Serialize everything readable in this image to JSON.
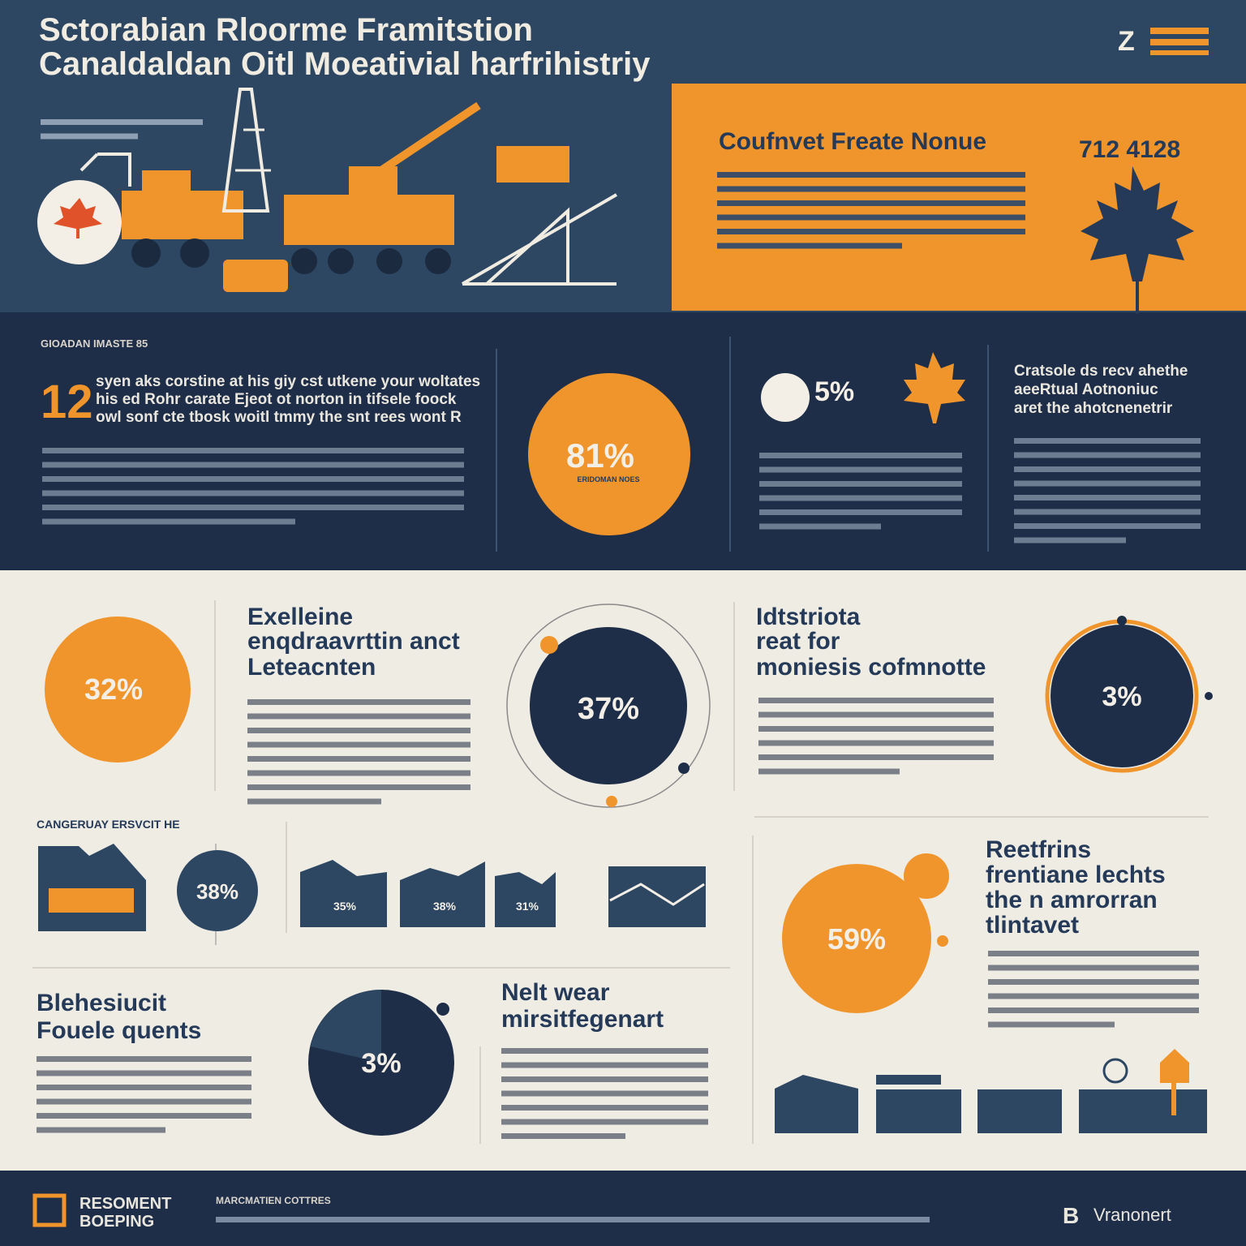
{
  "header": {
    "title": [
      "Sctorabian Rloorme Framitstion",
      "Canaldaldan Oitl Moeativial harfrihistriy"
    ],
    "logo": "Z"
  },
  "hero": {
    "heading": "Coufnvet Freate Nonue",
    "number": "712 4128"
  },
  "impact": {
    "label": "GIOADAN IMASTE 85",
    "big_number": "12",
    "lead": [
      "syen aks corstine at his giy cst utkene your woltates",
      "his ed Rohr carate Ejeot ot norton in tifsele foock",
      "owl sonf cte tbosk woitl tmmy the snt rees wont R"
    ],
    "circle_value": "81%",
    "circle_caption": "ERIDOMAN NOES",
    "badge_value": "5%",
    "side_heading": [
      "Cratsole ds recv ahethe",
      "aeeRtual Aotnoniuc",
      "aret the ahotcnenetrir"
    ]
  },
  "stats": {
    "left_value": "32%",
    "left_heading": [
      "Exelleine",
      "enqdraavrttin anct",
      "Leteacnten"
    ],
    "center_value": "37%",
    "right_heading": [
      "Idtstriota",
      "reat for",
      "moniesis cofmnotte"
    ],
    "right_value": "3%"
  },
  "economy": {
    "label": "CANGERUAY ERSVCIT HE",
    "circle_value": "38%",
    "bar_labels": [
      "35%",
      "38%",
      "31%"
    ],
    "right_heading": [
      "Reetfrins",
      "frentiane lechts",
      "the n amrorran",
      "tlintavet"
    ],
    "right_value": "59%"
  },
  "bottom": {
    "left_heading": [
      "Blehesiucit",
      "Fouele quents"
    ],
    "pie_value": "3%",
    "middle_heading": [
      "Nelt wear",
      "mirsitfegenart"
    ]
  },
  "footer": {
    "brand": [
      "RESOMENT",
      "BOEPING"
    ],
    "label": "MARCMATIEN COTTRES",
    "partner": "Vranonert"
  }
}
